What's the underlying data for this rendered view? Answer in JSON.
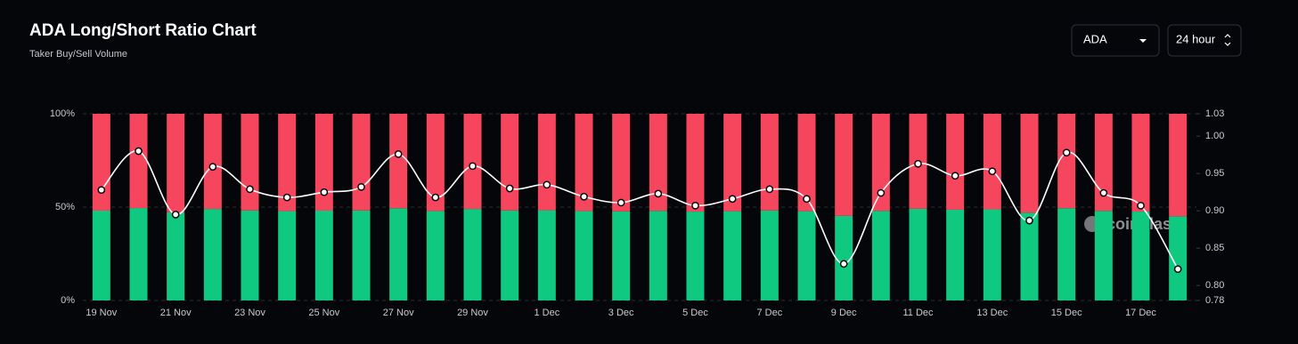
{
  "header": {
    "title": "ADA Long/Short Ratio Chart",
    "subtitle": "Taker Buy/Sell Volume"
  },
  "controls": {
    "symbol": "ADA",
    "interval": "24 hour"
  },
  "chart_data": {
    "type": "stacked-bar-line",
    "watermark": "coinglass",
    "categories": [
      "19 Nov",
      null,
      "21 Nov",
      null,
      "23 Nov",
      null,
      "25 Nov",
      null,
      "27 Nov",
      null,
      "29 Nov",
      null,
      "1 Dec",
      null,
      "3 Dec",
      null,
      "5 Dec",
      null,
      "7 Dec",
      null,
      "9 Dec",
      null,
      "11 Dec",
      null,
      "13 Dec",
      null,
      "15 Dec",
      null,
      "17 Dec",
      null
    ],
    "ylim": [
      0,
      100
    ],
    "yticks": [
      {
        "value": 0,
        "label": "0%"
      },
      {
        "value": 50,
        "label": "50%"
      },
      {
        "value": 100,
        "label": "100%"
      }
    ],
    "y2lim": [
      0.78,
      1.03
    ],
    "y2ticks": [
      0.78,
      {
        "value": 0.8,
        "label": "0.80"
      },
      0.85,
      {
        "value": 0.9,
        "label": "0.90"
      },
      0.95,
      {
        "value": 1.0,
        "label": "1.00"
      },
      1.03
    ],
    "grid": true,
    "series": [
      {
        "color": "#10c981",
        "values": [
          48.1,
          49.5,
          47.2,
          49.0,
          48.2,
          47.9,
          48.1,
          48.2,
          49.4,
          47.9,
          49.0,
          48.2,
          48.3,
          47.9,
          47.7,
          48.0,
          47.6,
          47.8,
          48.2,
          47.8,
          45.3,
          48.0,
          49.1,
          48.6,
          48.8,
          47.0,
          49.4,
          48.0,
          47.6,
          45.1
        ]
      },
      {
        "color": "#f6465d",
        "values": [
          51.9,
          50.5,
          52.8,
          51.0,
          51.8,
          52.1,
          51.9,
          51.8,
          50.6,
          52.1,
          51.0,
          51.8,
          51.7,
          52.1,
          52.3,
          52.0,
          52.4,
          52.2,
          51.8,
          52.2,
          54.7,
          52.0,
          50.9,
          51.4,
          51.2,
          53.0,
          50.6,
          52.0,
          52.4,
          54.9
        ]
      },
      {
        "color": "#ffffff",
        "axis": "y2",
        "values": [
          0.928,
          0.98,
          0.895,
          0.959,
          0.929,
          0.918,
          0.925,
          0.932,
          0.976,
          0.918,
          0.96,
          0.93,
          0.935,
          0.919,
          0.911,
          0.923,
          0.907,
          0.916,
          0.929,
          0.916,
          0.829,
          0.924,
          0.963,
          0.947,
          0.953,
          0.887,
          0.978,
          0.924,
          0.907,
          0.822
        ]
      }
    ]
  }
}
